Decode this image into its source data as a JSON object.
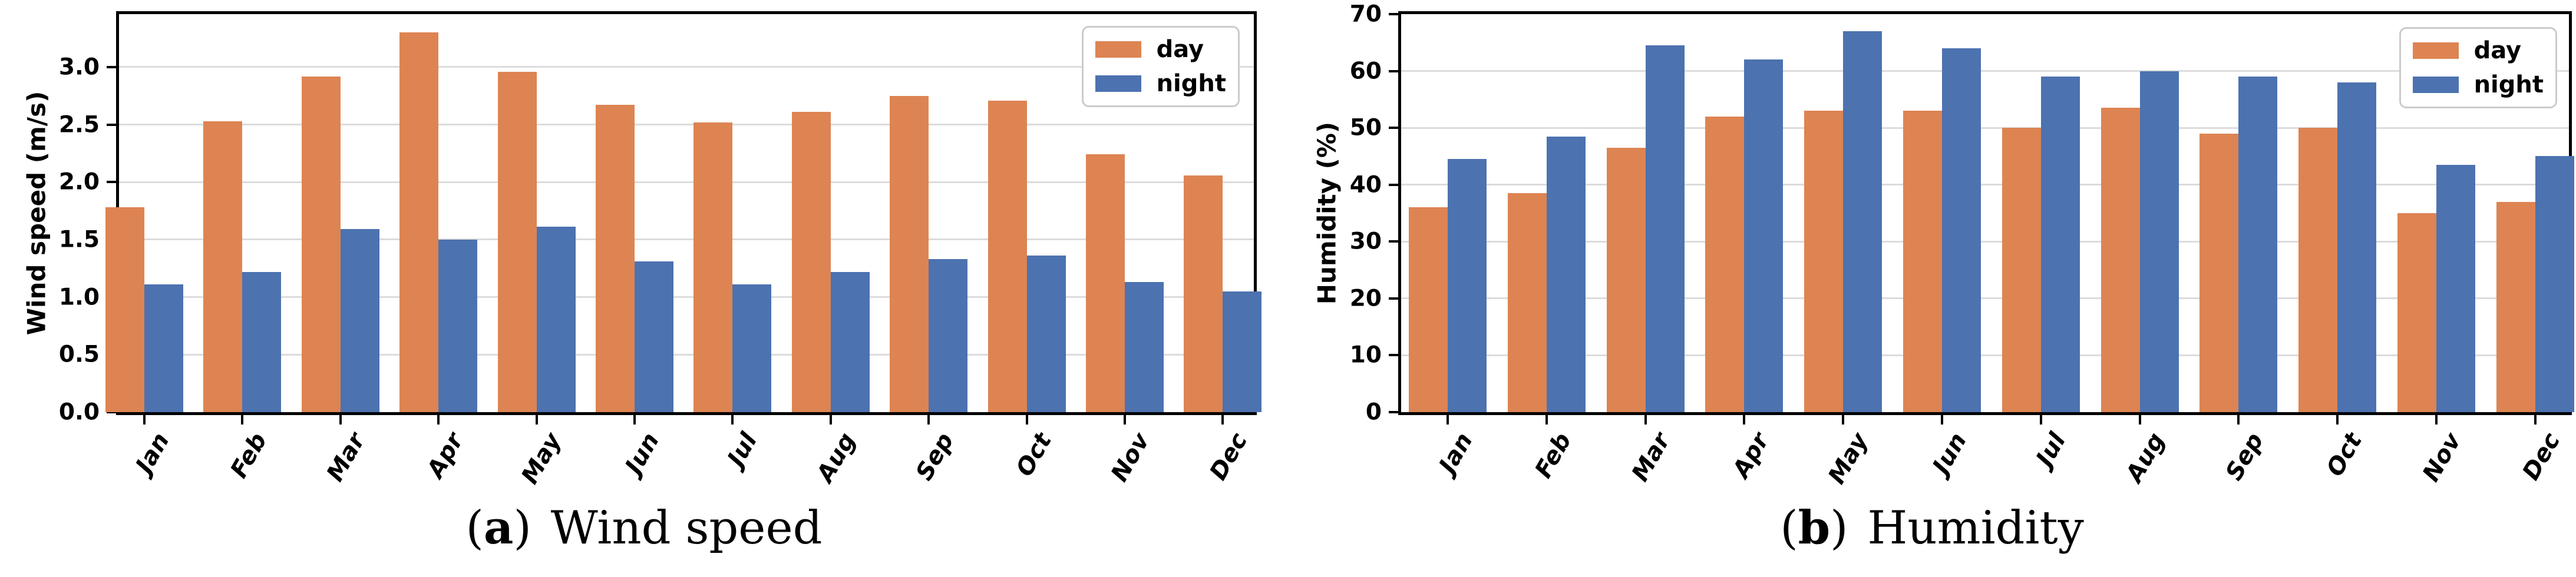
{
  "figure": {
    "background": "#ffffff",
    "colors": {
      "day": "#DD8452",
      "night": "#4C72B0",
      "grid": "#DCDCDC",
      "spine": "#000000",
      "legend_border": "#CBCBCB",
      "text": "#000000"
    }
  },
  "chart_data": [
    {
      "type": "bar",
      "caption": {
        "open": "(",
        "letter": "a",
        "close": ")",
        "text": "Wind speed"
      },
      "ylabel": "Wind speed (m/s)",
      "xlabel": "",
      "categories": [
        "Jan",
        "Feb",
        "Mar",
        "Apr",
        "May",
        "Jun",
        "Jul",
        "Aug",
        "Sep",
        "Oct",
        "Nov",
        "Dec"
      ],
      "series": [
        {
          "name": "day",
          "color": "#DD8452",
          "values": [
            1.78,
            2.53,
            2.92,
            3.3,
            2.96,
            2.67,
            2.52,
            2.61,
            2.75,
            2.71,
            2.24,
            2.06
          ]
        },
        {
          "name": "night",
          "color": "#4C72B0",
          "values": [
            1.11,
            1.22,
            1.59,
            1.5,
            1.61,
            1.31,
            1.11,
            1.22,
            1.33,
            1.36,
            1.13,
            1.05
          ]
        }
      ],
      "ylim": [
        0,
        3.46
      ],
      "yticks": [
        "0.0",
        "0.5",
        "1.0",
        "1.5",
        "2.0",
        "2.5",
        "3.0"
      ],
      "grid": "horizontal",
      "legend_position": "upper right",
      "bar_width_fraction": 0.4
    },
    {
      "type": "bar",
      "caption": {
        "open": "(",
        "letter": "b",
        "close": ")",
        "text": "Humidity"
      },
      "ylabel": "Humidity (%)",
      "xlabel": "",
      "categories": [
        "Jan",
        "Feb",
        "Mar",
        "Apr",
        "May",
        "Jun",
        "Jul",
        "Aug",
        "Sep",
        "Oct",
        "Nov",
        "Dec"
      ],
      "series": [
        {
          "name": "day",
          "color": "#DD8452",
          "values": [
            36,
            38.5,
            46.5,
            52,
            53,
            53,
            50,
            53.5,
            49,
            50,
            35,
            37
          ]
        },
        {
          "name": "night",
          "color": "#4C72B0",
          "values": [
            44.5,
            48.5,
            64.5,
            62,
            67,
            64,
            59,
            60,
            59,
            58,
            43.5,
            45
          ]
        }
      ],
      "ylim": [
        0,
        70
      ],
      "yticks": [
        "0",
        "10",
        "20",
        "30",
        "40",
        "50",
        "60",
        "70"
      ],
      "grid": "horizontal",
      "legend_position": "upper right",
      "bar_width_fraction": 0.4
    }
  ]
}
